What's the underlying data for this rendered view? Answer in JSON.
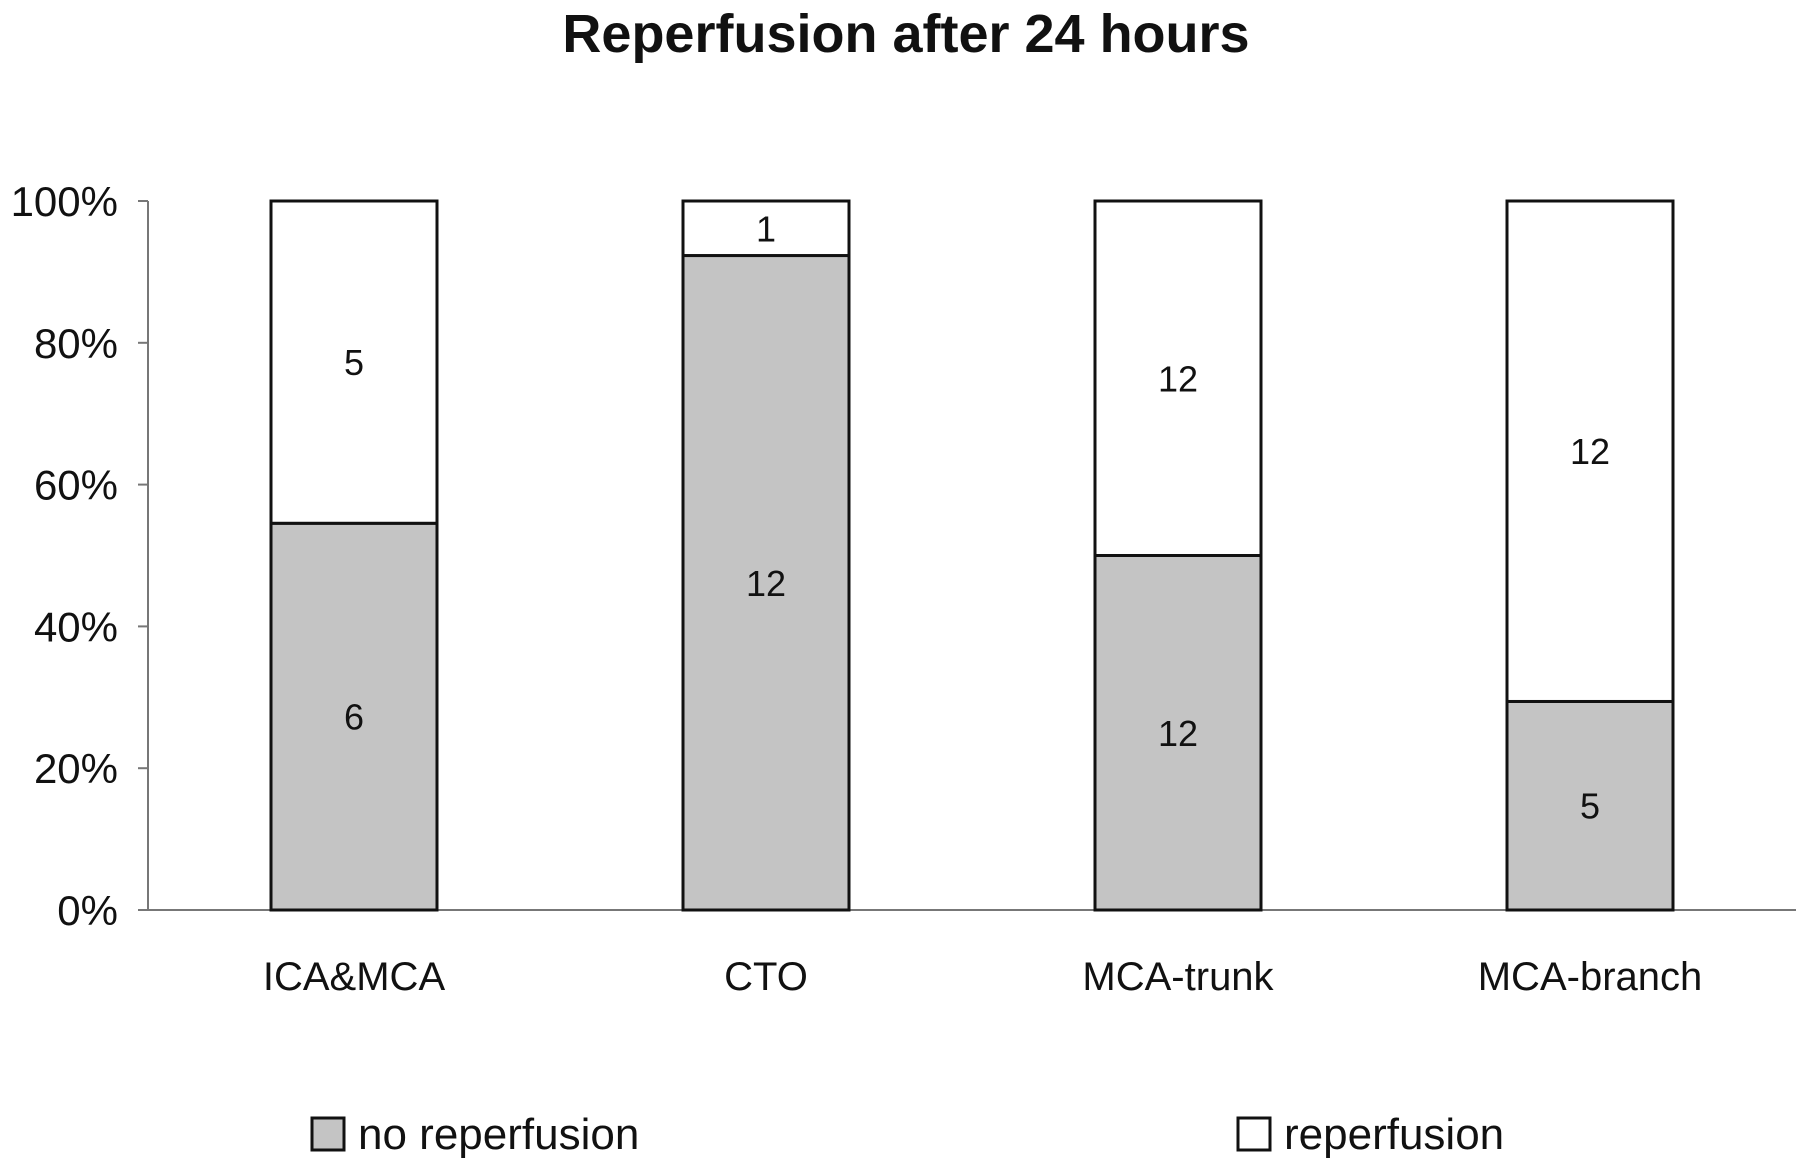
{
  "chart_data": {
    "type": "bar",
    "stacked": true,
    "percent_stacked": true,
    "title": "Reperfusion after 24 hours",
    "categories": [
      "ICA&MCA",
      "CTO",
      "MCA-trunk",
      "MCA-branch"
    ],
    "series": [
      {
        "name": "no reperfusion",
        "values": [
          6,
          12,
          12,
          5
        ],
        "color": "#c4c4c4"
      },
      {
        "name": "reperfusion",
        "values": [
          5,
          1,
          12,
          12
        ],
        "color": "#ffffff"
      }
    ],
    "ylim": [
      0,
      100
    ],
    "y_ticks": [
      "0%",
      "20%",
      "40%",
      "60%",
      "80%",
      "100%"
    ],
    "grid": false,
    "legend_position": "bottom"
  }
}
